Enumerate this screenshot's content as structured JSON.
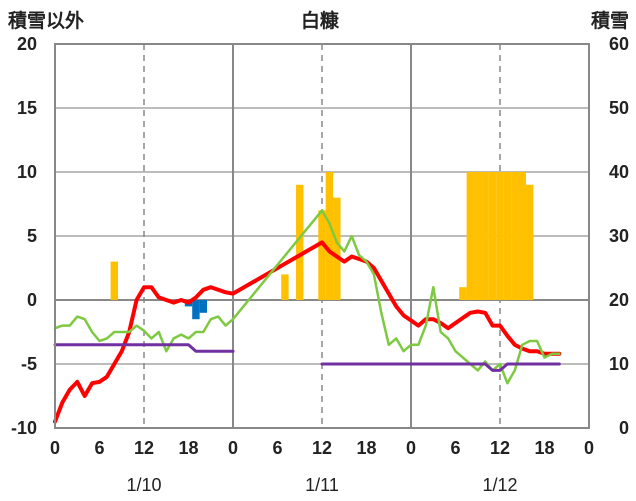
{
  "chart_data": {
    "type": "line",
    "title": "白糠",
    "left_axis_label": "積雪以外",
    "right_axis_label": "積雪",
    "y_left": {
      "min": -10,
      "max": 20,
      "ticks": [
        -10,
        -5,
        0,
        5,
        10,
        15,
        20
      ]
    },
    "y_right": {
      "min": 0,
      "max": 60,
      "ticks": [
        0,
        10,
        20,
        30,
        40,
        50,
        60
      ]
    },
    "x": {
      "min": 0,
      "max": 72,
      "unit": "hours since 1/10 00:00",
      "tick_labels": [
        "0",
        "6",
        "12",
        "18",
        "0",
        "6",
        "12",
        "18",
        "0",
        "6",
        "12",
        "18",
        "0"
      ],
      "major_every": 24,
      "dashed_every": 12
    },
    "day_labels": [
      {
        "text": "1/10",
        "center_hour": 12
      },
      {
        "text": "1/11",
        "center_hour": 36
      },
      {
        "text": "1/12",
        "center_hour": 60
      }
    ],
    "bars_positive": [
      {
        "hour": 8,
        "value": 3
      },
      {
        "hour": 31,
        "value": 2
      },
      {
        "hour": 33,
        "value": 9
      },
      {
        "hour": 36,
        "value": 7
      },
      {
        "hour": 37,
        "value": 10
      },
      {
        "hour": 38,
        "value": 8
      },
      {
        "hour": 55,
        "value": 1
      },
      {
        "hour": 56,
        "value": 10
      },
      {
        "hour": 57,
        "value": 10
      },
      {
        "hour": 58,
        "value": 10
      },
      {
        "hour": 59,
        "value": 10
      },
      {
        "hour": 60,
        "value": 10
      },
      {
        "hour": 61,
        "value": 10
      },
      {
        "hour": 62,
        "value": 10
      },
      {
        "hour": 63,
        "value": 10
      },
      {
        "hour": 64,
        "value": 9
      }
    ],
    "bars_negative": [
      {
        "hour": 18,
        "value": -0.5
      },
      {
        "hour": 19,
        "value": -1.5
      },
      {
        "hour": 20,
        "value": -1
      }
    ],
    "series": [
      {
        "color": "#ff0000",
        "width": 4,
        "axis": "left",
        "points": [
          [
            0,
            -9.5
          ],
          [
            1,
            -8
          ],
          [
            2,
            -7
          ],
          [
            3,
            -6.4
          ],
          [
            4,
            -7.5
          ],
          [
            5,
            -6.5
          ],
          [
            6,
            -6.4
          ],
          [
            7,
            -6
          ],
          [
            8,
            -5
          ],
          [
            9,
            -4
          ],
          [
            10,
            -2.5
          ],
          [
            11,
            0
          ],
          [
            12,
            1
          ],
          [
            13,
            1
          ],
          [
            14,
            0.2
          ],
          [
            15,
            0
          ],
          [
            16,
            -0.2
          ],
          [
            17,
            0
          ],
          [
            18,
            -0.2
          ],
          [
            19,
            0.2
          ],
          [
            20,
            0.8
          ],
          [
            21,
            1
          ],
          [
            22,
            0.8
          ],
          [
            23,
            0.6
          ],
          [
            24,
            0.5
          ],
          [
            36,
            4.5
          ],
          [
            37,
            3.8
          ],
          [
            38,
            3.4
          ],
          [
            39,
            3
          ],
          [
            40,
            3.4
          ],
          [
            41,
            3.2
          ],
          [
            42,
            3
          ],
          [
            43,
            2.5
          ],
          [
            44,
            1.5
          ],
          [
            45,
            0.5
          ],
          [
            46,
            -0.5
          ],
          [
            47,
            -1.2
          ],
          [
            48,
            -1.6
          ],
          [
            49,
            -2
          ],
          [
            50,
            -1.5
          ],
          [
            51,
            -1.5
          ],
          [
            52,
            -1.8
          ],
          [
            53,
            -2.2
          ],
          [
            54,
            -1.8
          ],
          [
            55,
            -1.4
          ],
          [
            56,
            -1
          ],
          [
            57,
            -0.9
          ],
          [
            58,
            -1
          ],
          [
            59,
            -2
          ],
          [
            60,
            -2
          ],
          [
            61,
            -2.8
          ],
          [
            62,
            -3.5
          ],
          [
            63,
            -3.8
          ],
          [
            64,
            -4
          ],
          [
            65,
            -4
          ],
          [
            66,
            -4.2
          ],
          [
            67,
            -4.2
          ],
          [
            68,
            -4.2
          ]
        ]
      },
      {
        "color": "#7ec942",
        "width": 2.5,
        "axis": "left",
        "points": [
          [
            0,
            -2.2
          ],
          [
            1,
            -2
          ],
          [
            2,
            -2
          ],
          [
            3,
            -1.3
          ],
          [
            4,
            -1.5
          ],
          [
            5,
            -2.5
          ],
          [
            6,
            -3.2
          ],
          [
            7,
            -3
          ],
          [
            8,
            -2.5
          ],
          [
            9,
            -2.5
          ],
          [
            10,
            -2.5
          ],
          [
            11,
            -2
          ],
          [
            12,
            -2.4
          ],
          [
            13,
            -3
          ],
          [
            14,
            -2.5
          ],
          [
            15,
            -4
          ],
          [
            16,
            -3
          ],
          [
            17,
            -2.7
          ],
          [
            18,
            -3
          ],
          [
            19,
            -2.5
          ],
          [
            20,
            -2.5
          ],
          [
            21,
            -1.5
          ],
          [
            22,
            -1.3
          ],
          [
            23,
            -2
          ],
          [
            24,
            -1.5
          ],
          [
            36,
            7
          ],
          [
            37,
            6
          ],
          [
            38,
            4.5
          ],
          [
            39,
            3.8
          ],
          [
            40,
            5
          ],
          [
            41,
            3.5
          ],
          [
            42,
            3
          ],
          [
            43,
            2
          ],
          [
            44,
            -1
          ],
          [
            45,
            -3.5
          ],
          [
            46,
            -3
          ],
          [
            47,
            -4
          ],
          [
            48,
            -3.5
          ],
          [
            49,
            -3.5
          ],
          [
            50,
            -2
          ],
          [
            51,
            1
          ],
          [
            52,
            -2.5
          ],
          [
            53,
            -3
          ],
          [
            54,
            -4
          ],
          [
            55,
            -4.5
          ],
          [
            56,
            -5
          ],
          [
            57,
            -5.5
          ],
          [
            58,
            -4.8
          ],
          [
            59,
            -5.5
          ],
          [
            60,
            -5
          ],
          [
            61,
            -6.5
          ],
          [
            62,
            -5.5
          ],
          [
            63,
            -3.5
          ],
          [
            64,
            -3.2
          ],
          [
            65,
            -3.2
          ],
          [
            66,
            -4.5
          ],
          [
            67,
            -4.2
          ],
          [
            68,
            -4.2
          ]
        ]
      },
      {
        "color": "#7030a0",
        "width": 3,
        "axis": "left",
        "points": [
          [
            0,
            -3.5
          ],
          [
            18,
            -3.5
          ],
          [
            19,
            -4
          ],
          [
            24,
            -4
          ]
        ]
      },
      {
        "color": "#7030a0",
        "width": 3,
        "axis": "left",
        "points": [
          [
            36,
            -5
          ],
          [
            58,
            -5
          ],
          [
            59,
            -5.5
          ],
          [
            60,
            -5.5
          ],
          [
            61,
            -5
          ],
          [
            68,
            -5
          ]
        ]
      }
    ]
  }
}
